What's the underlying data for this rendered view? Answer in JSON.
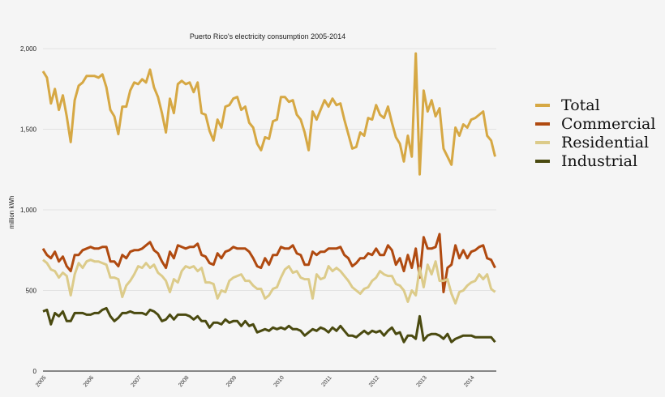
{
  "chart_data": {
    "type": "line",
    "title": "Puerto Rico's electricity consumption 2005-2014",
    "xlabel": "",
    "ylabel": "million kWh",
    "ylim": [
      0,
      2000
    ],
    "yticks": [
      "0",
      "500",
      "1,000",
      "1,500",
      "2,000"
    ],
    "ytick_values": [
      0,
      500,
      1000,
      1500,
      2000
    ],
    "xticks": [
      "2005",
      "2006",
      "2007",
      "2008",
      "2009",
      "2010",
      "2011",
      "2012",
      "2013",
      "2014"
    ],
    "x_start": "2005-01",
    "x_end": "2014-07",
    "x_frequency": "monthly",
    "grid": true,
    "legend_position": "right",
    "series": [
      {
        "name": "Total",
        "color": "#d6a844",
        "values": [
          1860,
          1820,
          1660,
          1750,
          1620,
          1710,
          1580,
          1420,
          1680,
          1770,
          1790,
          1830,
          1830,
          1830,
          1820,
          1840,
          1760,
          1620,
          1580,
          1470,
          1640,
          1640,
          1740,
          1790,
          1780,
          1810,
          1790,
          1870,
          1760,
          1700,
          1600,
          1480,
          1690,
          1600,
          1780,
          1800,
          1780,
          1790,
          1730,
          1790,
          1600,
          1590,
          1490,
          1430,
          1560,
          1510,
          1640,
          1650,
          1690,
          1700,
          1620,
          1640,
          1540,
          1510,
          1410,
          1370,
          1450,
          1440,
          1550,
          1560,
          1700,
          1700,
          1670,
          1680,
          1590,
          1560,
          1480,
          1370,
          1610,
          1560,
          1620,
          1680,
          1640,
          1690,
          1650,
          1660,
          1560,
          1470,
          1380,
          1390,
          1480,
          1460,
          1570,
          1560,
          1650,
          1590,
          1570,
          1640,
          1540,
          1450,
          1410,
          1300,
          1460,
          1330,
          1970,
          1220,
          1740,
          1610,
          1680,
          1580,
          1630,
          1380,
          1330,
          1280,
          1510,
          1460,
          1530,
          1510,
          1560,
          1570,
          1590,
          1610,
          1460,
          1430,
          1330
        ]
      },
      {
        "name": "Commercial",
        "color": "#b04a10",
        "values": [
          760,
          720,
          700,
          740,
          680,
          710,
          650,
          620,
          720,
          720,
          750,
          760,
          770,
          760,
          760,
          770,
          770,
          680,
          680,
          650,
          720,
          700,
          740,
          750,
          750,
          760,
          780,
          800,
          750,
          730,
          680,
          640,
          740,
          700,
          780,
          770,
          760,
          770,
          770,
          790,
          720,
          710,
          670,
          660,
          730,
          700,
          740,
          750,
          770,
          760,
          760,
          760,
          740,
          700,
          650,
          640,
          700,
          660,
          720,
          720,
          770,
          760,
          760,
          780,
          730,
          720,
          660,
          660,
          740,
          720,
          740,
          740,
          760,
          760,
          760,
          770,
          720,
          700,
          650,
          670,
          700,
          700,
          730,
          720,
          760,
          720,
          720,
          780,
          750,
          660,
          700,
          620,
          720,
          640,
          760,
          580,
          830,
          760,
          760,
          770,
          850,
          490,
          640,
          660,
          780,
          700,
          750,
          700,
          740,
          750,
          770,
          780,
          700,
          690,
          640
        ]
      },
      {
        "name": "Residential",
        "color": "#dccb8a",
        "values": [
          690,
          670,
          630,
          620,
          580,
          610,
          590,
          470,
          600,
          670,
          640,
          680,
          690,
          680,
          680,
          670,
          660,
          580,
          580,
          570,
          460,
          530,
          560,
          600,
          650,
          640,
          670,
          640,
          660,
          610,
          590,
          560,
          490,
          570,
          550,
          620,
          650,
          640,
          650,
          620,
          640,
          550,
          550,
          540,
          450,
          500,
          490,
          560,
          580,
          590,
          600,
          560,
          560,
          530,
          510,
          510,
          450,
          470,
          510,
          520,
          580,
          630,
          650,
          610,
          620,
          580,
          570,
          570,
          450,
          600,
          570,
          580,
          650,
          620,
          640,
          620,
          590,
          560,
          520,
          500,
          480,
          510,
          520,
          560,
          580,
          620,
          600,
          590,
          590,
          540,
          530,
          500,
          430,
          500,
          470,
          640,
          520,
          660,
          600,
          680,
          560,
          560,
          570,
          480,
          420,
          490,
          500,
          530,
          550,
          560,
          600,
          570,
          600,
          510,
          490
        ]
      },
      {
        "name": "Industrial",
        "color": "#4a4a10",
        "values": [
          370,
          380,
          290,
          360,
          340,
          370,
          310,
          310,
          360,
          360,
          360,
          350,
          350,
          360,
          360,
          380,
          390,
          340,
          310,
          330,
          360,
          360,
          370,
          360,
          360,
          360,
          350,
          380,
          370,
          350,
          310,
          320,
          350,
          320,
          350,
          350,
          350,
          340,
          320,
          340,
          310,
          310,
          270,
          300,
          300,
          290,
          320,
          300,
          310,
          310,
          280,
          310,
          280,
          290,
          240,
          250,
          260,
          250,
          270,
          260,
          270,
          260,
          280,
          260,
          260,
          250,
          220,
          240,
          260,
          250,
          270,
          260,
          240,
          270,
          250,
          280,
          250,
          220,
          220,
          210,
          230,
          250,
          230,
          250,
          240,
          250,
          220,
          250,
          270,
          230,
          240,
          180,
          220,
          220,
          200,
          340,
          190,
          220,
          230,
          230,
          220,
          200,
          230,
          180,
          200,
          210,
          220,
          220,
          220,
          210,
          210,
          210,
          210,
          210,
          180
        ]
      }
    ]
  }
}
